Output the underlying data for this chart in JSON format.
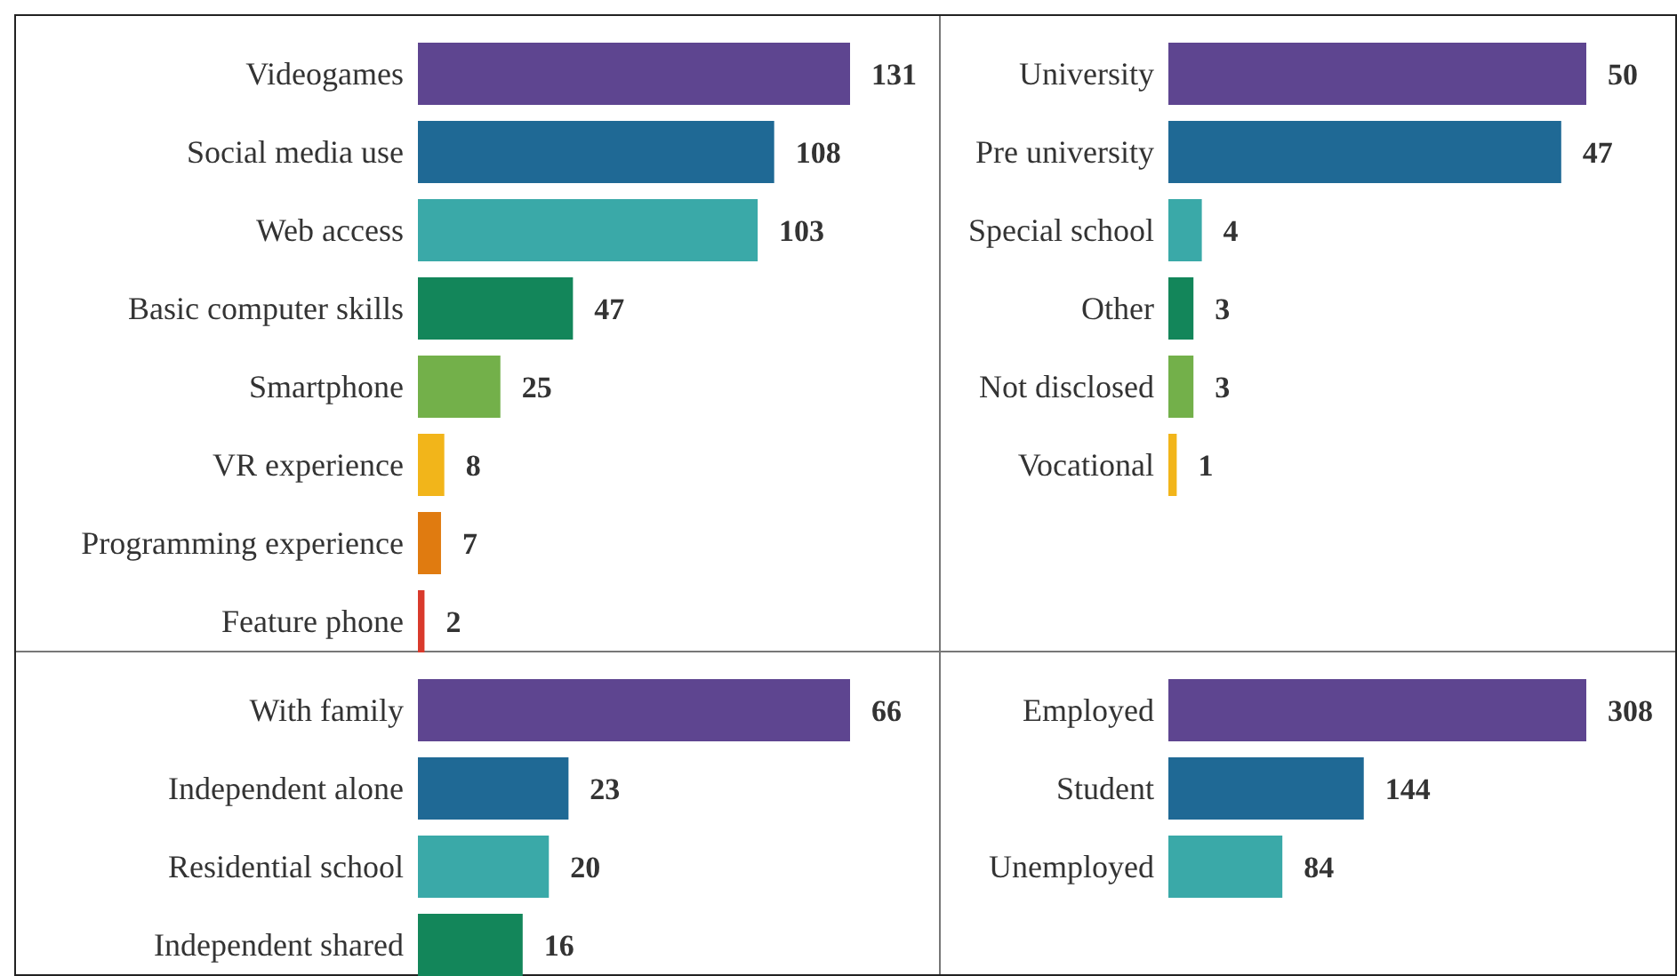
{
  "chart_data": [
    {
      "type": "bar",
      "orientation": "horizontal",
      "data_labels": true,
      "categories": [
        "Videogames",
        "Social media use",
        "Web access",
        "Basic computer skills",
        "Smartphone",
        "VR experience",
        "Programming experience",
        "Feature phone"
      ],
      "values": [
        131,
        108,
        103,
        47,
        25,
        8,
        7,
        2
      ],
      "colors": [
        "#5e4590",
        "#1f6995",
        "#3aa9a8",
        "#13865a",
        "#73b04a",
        "#f2b51a",
        "#e07b10",
        "#d93a2c"
      ]
    },
    {
      "type": "bar",
      "orientation": "horizontal",
      "data_labels": true,
      "categories": [
        "University",
        "Pre university",
        "Special school",
        "Other",
        "Not disclosed",
        "Vocational"
      ],
      "values": [
        50,
        47,
        4,
        3,
        3,
        1
      ],
      "colors": [
        "#5e4590",
        "#1f6995",
        "#3aa9a8",
        "#13865a",
        "#73b04a",
        "#f2b51a"
      ]
    },
    {
      "type": "bar",
      "orientation": "horizontal",
      "data_labels": true,
      "categories": [
        "With family",
        "Independent alone",
        "Residential school",
        "Independent shared"
      ],
      "values": [
        66,
        23,
        20,
        16
      ],
      "colors": [
        "#5e4590",
        "#1f6995",
        "#3aa9a8",
        "#13865a"
      ]
    },
    {
      "type": "bar",
      "orientation": "horizontal",
      "data_labels": true,
      "categories": [
        "Employed",
        "Student",
        "Unemployed"
      ],
      "values": [
        308,
        144,
        84
      ],
      "colors": [
        "#5e4590",
        "#1f6995",
        "#3aa9a8"
      ]
    }
  ]
}
